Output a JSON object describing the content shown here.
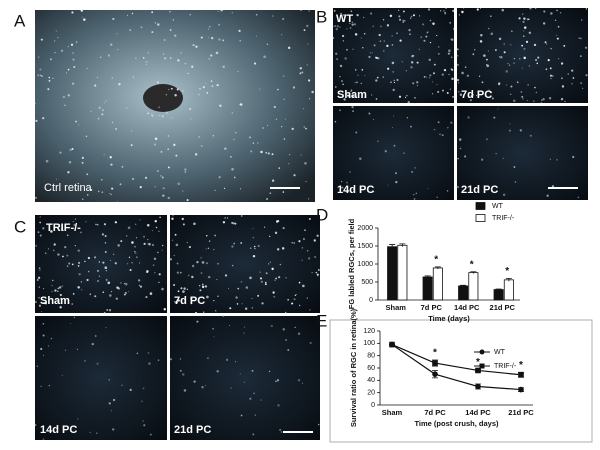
{
  "panels": {
    "A": {
      "label": "A",
      "caption": "Ctrl retina"
    },
    "B": {
      "label": "B",
      "group": "WT",
      "tiles": [
        "Sham",
        "7d PC",
        "14d PC",
        "21d PC"
      ]
    },
    "C": {
      "label": "C",
      "group": "TRIF-/-",
      "tiles": [
        "Sham",
        "7d PC",
        "14d PC",
        "21d PC"
      ]
    },
    "D": {
      "label": "D"
    },
    "E": {
      "label": "E"
    }
  },
  "chart_data": [
    {
      "type": "bar",
      "ylabel": "FG labled RGCs, per field",
      "xlabel": "Time (days)",
      "categories": [
        "Sham",
        "7d PC",
        "14d PC",
        "21d PC"
      ],
      "series": [
        {
          "name": "WT",
          "color": "#111111",
          "values": [
            1480,
            640,
            390,
            290
          ],
          "errors": [
            60,
            30,
            20,
            15
          ]
        },
        {
          "name": "TRIF-/-",
          "color": "#ffffff",
          "values": [
            1520,
            890,
            760,
            560
          ],
          "errors": [
            40,
            30,
            25,
            40
          ]
        }
      ],
      "significance": [
        null,
        "*",
        "*",
        "*"
      ],
      "ylim": [
        0,
        2000
      ],
      "yticks": [
        0,
        500,
        1000,
        1500,
        2000
      ]
    },
    {
      "type": "line",
      "ylabel": "Survival ratio of RGC in retina(%)",
      "xlabel": "Time (post crush, days)",
      "categories": [
        "Sham",
        "7d PC",
        "14d PC",
        "21d PC"
      ],
      "series": [
        {
          "name": "WT",
          "color": "#111111",
          "marker": "circle",
          "values": [
            98,
            50,
            30,
            25
          ],
          "errors": [
            0,
            6,
            4,
            3
          ]
        },
        {
          "name": "TRIF-/-",
          "color": "#111111",
          "marker": "square",
          "values": [
            98,
            68,
            56,
            49
          ],
          "errors": [
            0,
            5,
            2,
            4
          ]
        }
      ],
      "significance": [
        null,
        "*",
        "*",
        "*"
      ],
      "ylim": [
        0,
        120
      ],
      "yticks": [
        0,
        20,
        40,
        60,
        80,
        100,
        120
      ]
    }
  ]
}
